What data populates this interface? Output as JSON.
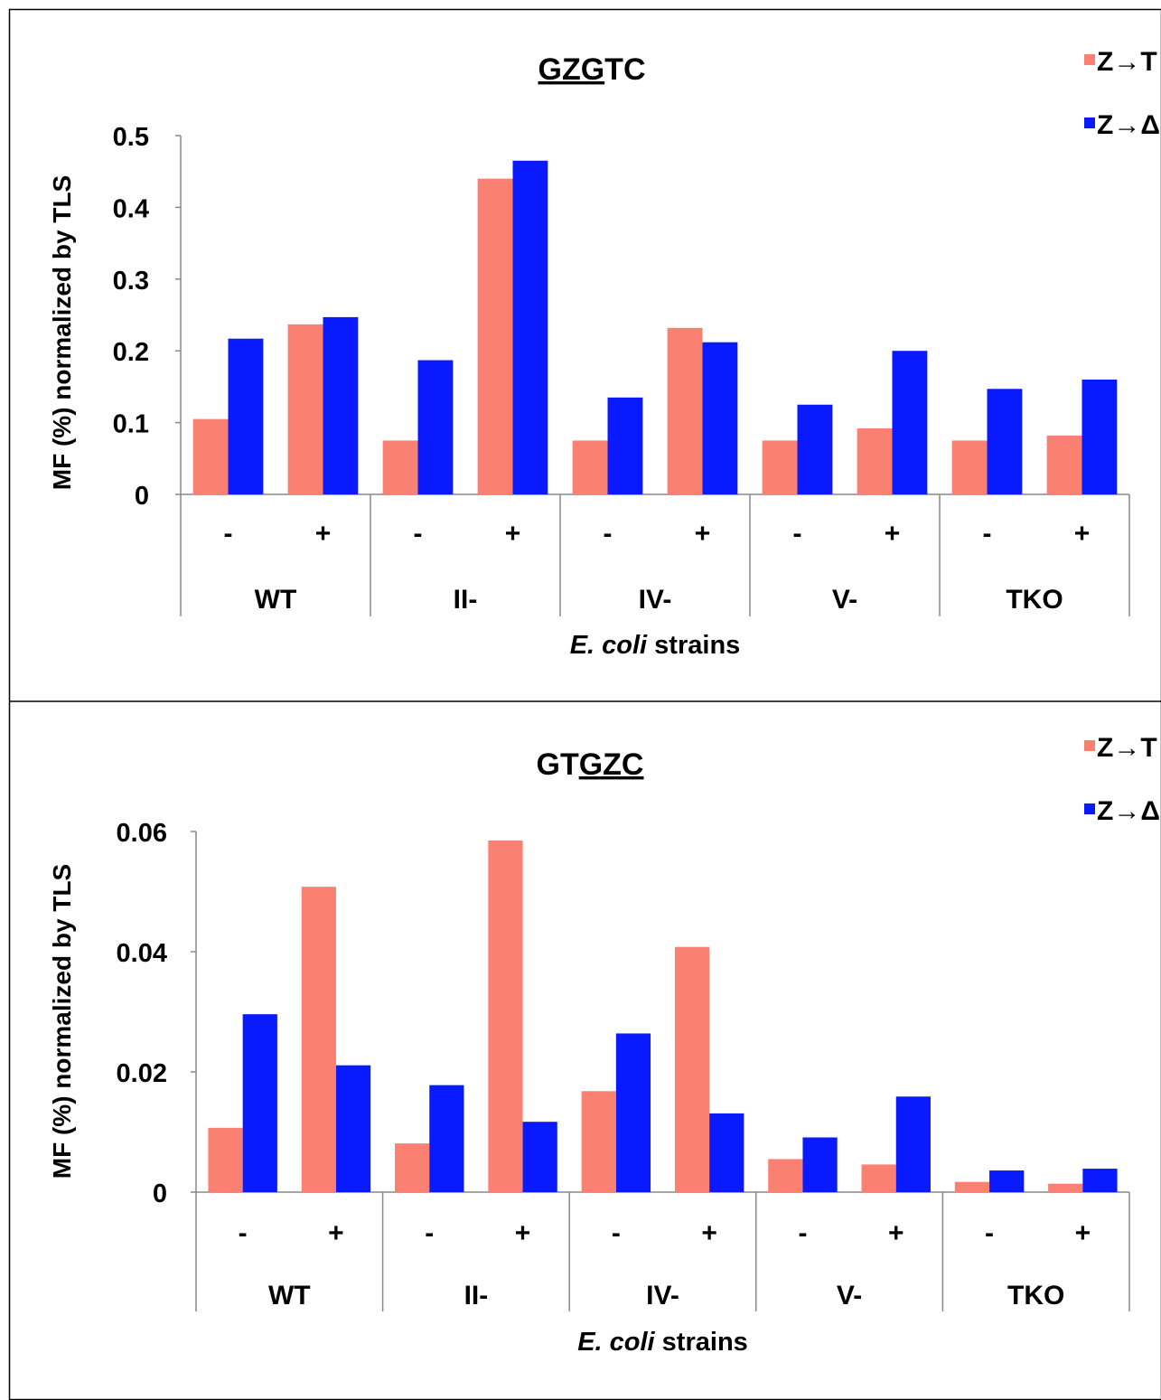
{
  "chart_data": [
    {
      "type": "bar",
      "title": "GZGTC",
      "title_parts": [
        {
          "text": "GZG",
          "underline": true
        },
        {
          "text": "TC",
          "underline": false
        }
      ],
      "ylabel": "MF (%) normalized by TLS",
      "xlabel_italic": "E. coli",
      "xlabel_rest": " strains",
      "ylim": [
        0,
        0.5
      ],
      "yticks": [
        {
          "value": 0,
          "label": "0"
        },
        {
          "value": 0.1,
          "label": "0.1"
        },
        {
          "value": 0.2,
          "label": "0.2"
        },
        {
          "value": 0.3,
          "label": "0.3"
        },
        {
          "value": 0.4,
          "label": "0.4"
        },
        {
          "value": 0.5,
          "label": "0.5"
        }
      ],
      "groups": [
        "WT",
        "II-",
        "IV-",
        "V-",
        "TKO"
      ],
      "categories": [
        "-",
        "+",
        "-",
        "+",
        "-",
        "+",
        "-",
        "+",
        "-",
        "+"
      ],
      "legend_position": "top-right",
      "series": [
        {
          "name": "Z→T",
          "color": "#fa8072",
          "values": [
            0.105,
            0.237,
            0.075,
            0.44,
            0.075,
            0.232,
            0.075,
            0.092,
            0.075,
            0.082
          ]
        },
        {
          "name": "Z→Δ",
          "color": "#0a1aff",
          "values": [
            0.217,
            0.247,
            0.187,
            0.465,
            0.135,
            0.212,
            0.125,
            0.2,
            0.147,
            0.16
          ]
        }
      ]
    },
    {
      "type": "bar",
      "title": "GTGZC",
      "title_parts": [
        {
          "text": "GT",
          "underline": false
        },
        {
          "text": "GZC",
          "underline": true
        }
      ],
      "ylabel": "MF (%) normalized by TLS",
      "xlabel_italic": "E. coli",
      "xlabel_rest": " strains",
      "ylim": [
        0,
        0.06
      ],
      "yticks": [
        {
          "value": 0,
          "label": "0"
        },
        {
          "value": 0.02,
          "label": "0.02"
        },
        {
          "value": 0.04,
          "label": "0.04"
        },
        {
          "value": 0.06,
          "label": "0.06"
        }
      ],
      "groups": [
        "WT",
        "II-",
        "IV-",
        "V-",
        "TKO"
      ],
      "categories": [
        "-",
        "+",
        "-",
        "+",
        "-",
        "+",
        "-",
        "+",
        "-",
        "+"
      ],
      "legend_position": "top-right",
      "series": [
        {
          "name": "Z→T",
          "color": "#fa8072",
          "values": [
            0.0107,
            0.0508,
            0.0081,
            0.0585,
            0.0168,
            0.0408,
            0.0055,
            0.0046,
            0.0017,
            0.0014
          ]
        },
        {
          "name": "Z→Δ",
          "color": "#0a1aff",
          "values": [
            0.0296,
            0.0211,
            0.0178,
            0.0117,
            0.0264,
            0.0131,
            0.0091,
            0.0159,
            0.0036,
            0.0039
          ]
        }
      ]
    }
  ]
}
